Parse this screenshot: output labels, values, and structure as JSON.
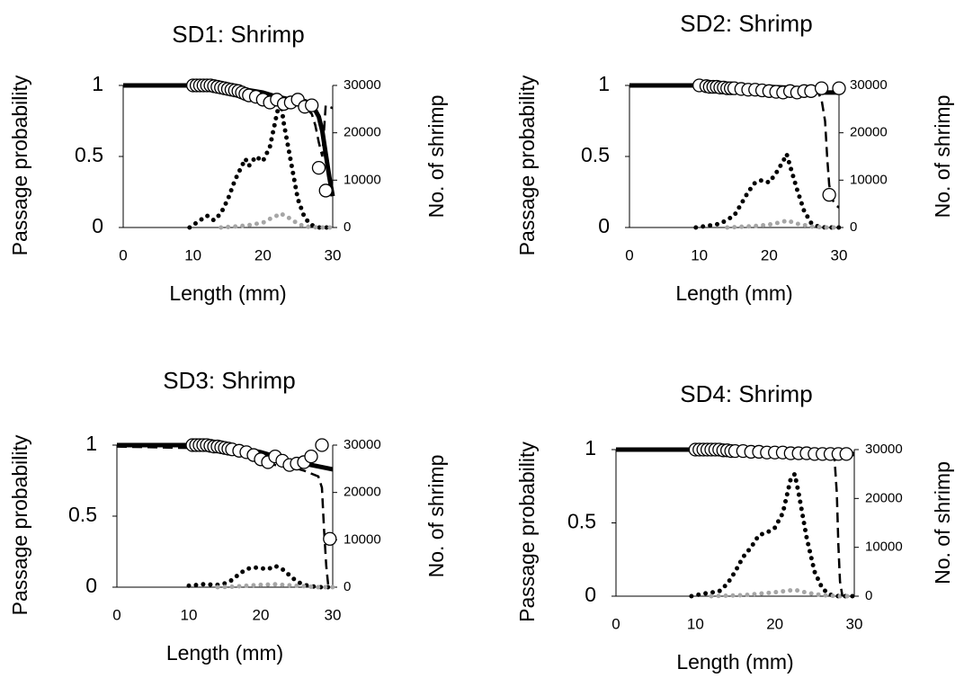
{
  "chart_data": [
    {
      "type": "line",
      "title": "SD1: Shrimp",
      "x_label": "Length (mm)",
      "y_label": "Passage probability",
      "y2_label": "No. of shrimp",
      "xlim": [
        0,
        30
      ],
      "xticks": [
        0,
        10,
        20,
        30
      ],
      "ylim": [
        0,
        1
      ],
      "yticks": [
        0,
        0.5,
        1
      ],
      "y2lim": [
        0,
        30000
      ],
      "y2ticks": [
        0,
        10000,
        20000,
        30000
      ],
      "series": [
        {
          "color": "#000000",
          "style": "solid",
          "x": [
            0,
            5,
            10,
            15,
            20,
            22,
            24,
            26,
            27,
            28,
            28.5,
            29,
            29.5,
            30
          ],
          "values": [
            1,
            1,
            1,
            0.99,
            0.95,
            0.92,
            0.9,
            0.89,
            0.87,
            0.78,
            0.68,
            0.52,
            0.36,
            0.22
          ]
        },
        {
          "color": "#000000",
          "style": "dashed",
          "x": [
            20,
            22,
            24,
            25,
            26,
            27,
            27.5,
            28,
            28.5,
            29,
            29.5,
            30
          ],
          "values": [
            0.9,
            0.88,
            0.87,
            0.86,
            0.85,
            0.8,
            0.72,
            0.6,
            0.5,
            0.86,
            0.85,
            0.84
          ]
        },
        {
          "color": "#000000",
          "style": "markers",
          "x": [
            10,
            10.5,
            11,
            11.5,
            12,
            12.5,
            13,
            13.5,
            14,
            14.5,
            15,
            15.5,
            16,
            16.5,
            17,
            17.5,
            18,
            19,
            20,
            21,
            22,
            23,
            24,
            25,
            26,
            27,
            28,
            29
          ],
          "values": [
            1,
            1,
            1,
            1,
            1,
            1,
            0.995,
            0.99,
            0.985,
            0.98,
            0.975,
            0.97,
            0.965,
            0.96,
            0.95,
            0.94,
            0.93,
            0.92,
            0.9,
            0.88,
            0.9,
            0.87,
            0.88,
            0.9,
            0.85,
            0.86,
            0.42,
            0.26
          ]
        },
        {
          "color": "#000000",
          "style": "dotted",
          "axis": "y2",
          "x": [
            9.5,
            10,
            11,
            12,
            13,
            14,
            15,
            16,
            17,
            17.5,
            18,
            19,
            20,
            21,
            22,
            22.5,
            23,
            24,
            25,
            26,
            27,
            28,
            29,
            30
          ],
          "values": [
            0,
            500,
            1500,
            2500,
            1500,
            3000,
            6000,
            10000,
            13000,
            14500,
            13000,
            15000,
            14000,
            17000,
            24000,
            27000,
            22000,
            14000,
            6000,
            2000,
            500,
            0,
            0,
            0
          ]
        },
        {
          "color": "#a6a6a6",
          "style": "dotted",
          "axis": "y2",
          "x": [
            14,
            16,
            18,
            20,
            21,
            22,
            22.5,
            23,
            24,
            25,
            26,
            28,
            30
          ],
          "values": [
            0,
            200,
            500,
            1000,
            1800,
            2500,
            3000,
            2600,
            1800,
            800,
            200,
            0,
            0
          ]
        }
      ]
    },
    {
      "type": "line",
      "title": "SD2: Shrimp",
      "x_label": "Length (mm)",
      "y_label": "Passage probability",
      "y2_label": "No. of shrimp",
      "xlim": [
        0,
        30
      ],
      "xticks": [
        0,
        10,
        20,
        30
      ],
      "ylim": [
        0,
        1
      ],
      "yticks": [
        0,
        0.5,
        1
      ],
      "y2lim": [
        0,
        30000
      ],
      "y2ticks": [
        0,
        10000,
        20000,
        30000
      ],
      "series": [
        {
          "color": "#000000",
          "style": "solid",
          "x": [
            0,
            10,
            20,
            25,
            27,
            28,
            29,
            30
          ],
          "values": [
            1,
            1,
            0.99,
            0.98,
            0.96,
            0.95,
            0.95,
            0.95
          ]
        },
        {
          "color": "#000000",
          "style": "dashed",
          "x": [
            0,
            10,
            20,
            25,
            27,
            27.5,
            28,
            28.3,
            28.6,
            29,
            29.5,
            30
          ],
          "values": [
            1,
            1,
            0.99,
            0.97,
            0.95,
            0.9,
            0.75,
            0.5,
            0.3,
            0.2,
            0.16,
            0.14
          ]
        },
        {
          "color": "#000000",
          "style": "markers",
          "x": [
            10,
            11,
            11.5,
            12,
            12.5,
            13,
            13.5,
            14,
            14.5,
            15,
            16,
            17,
            18,
            19,
            20,
            21,
            22,
            23,
            24,
            25,
            26,
            27.5,
            28.6,
            30
          ],
          "values": [
            1,
            0.995,
            0.99,
            0.99,
            0.99,
            0.985,
            0.985,
            0.98,
            0.98,
            0.98,
            0.975,
            0.97,
            0.97,
            0.965,
            0.96,
            0.955,
            0.95,
            0.96,
            0.95,
            0.96,
            0.96,
            0.98,
            0.23,
            0.98
          ]
        },
        {
          "color": "#000000",
          "style": "dotted",
          "axis": "y2",
          "x": [
            9.5,
            11,
            13,
            15,
            16,
            17,
            18,
            19,
            20,
            21,
            22,
            22.5,
            23,
            24,
            25,
            26,
            27,
            28,
            30
          ],
          "values": [
            0,
            300,
            800,
            2500,
            5000,
            7500,
            9500,
            10000,
            9500,
            11500,
            14000,
            15500,
            13000,
            8000,
            3500,
            1000,
            200,
            0,
            0
          ]
        },
        {
          "color": "#a6a6a6",
          "style": "dotted",
          "axis": "y2",
          "x": [
            14,
            18,
            20,
            22,
            22.5,
            24,
            26,
            28,
            30
          ],
          "values": [
            0,
            300,
            600,
            1200,
            1500,
            800,
            200,
            0,
            0
          ]
        }
      ]
    },
    {
      "type": "line",
      "title": "SD3: Shrimp",
      "x_label": "Length (mm)",
      "y_label": "Passage probability",
      "y2_label": "No. of shrimp",
      "xlim": [
        0,
        30
      ],
      "xticks": [
        0,
        10,
        20,
        30
      ],
      "ylim": [
        0,
        1
      ],
      "yticks": [
        0,
        0.5,
        1
      ],
      "y2lim": [
        0,
        30000
      ],
      "y2ticks": [
        0,
        10000,
        20000,
        30000
      ],
      "series": [
        {
          "color": "#000000",
          "style": "solid",
          "x": [
            0,
            10,
            15,
            18,
            20,
            22,
            24,
            26,
            28,
            30
          ],
          "values": [
            1,
            1,
            0.99,
            0.97,
            0.95,
            0.92,
            0.89,
            0.87,
            0.85,
            0.83
          ]
        },
        {
          "color": "#000000",
          "style": "dashed",
          "x": [
            0,
            10,
            15,
            18,
            20,
            22,
            24,
            26,
            27,
            28,
            28.5,
            28.8,
            29.1,
            29.4
          ],
          "values": [
            0.99,
            0.98,
            0.97,
            0.95,
            0.88,
            0.86,
            0.85,
            0.82,
            0.8,
            0.78,
            0.7,
            0.4,
            0.15,
            0
          ]
        },
        {
          "color": "#000000",
          "style": "markers",
          "x": [
            10.5,
            11,
            11.5,
            12,
            12.5,
            13,
            13.5,
            14,
            14.5,
            15,
            15.5,
            16,
            17,
            18,
            19,
            20,
            21,
            22,
            23,
            24,
            25,
            26,
            27,
            28.5,
            29.6
          ],
          "values": [
            1,
            1,
            1,
            1,
            1,
            0.995,
            0.99,
            0.99,
            0.985,
            0.98,
            0.975,
            0.97,
            0.96,
            0.95,
            0.93,
            0.9,
            0.88,
            0.92,
            0.89,
            0.86,
            0.87,
            0.88,
            0.92,
            1,
            0.34
          ]
        },
        {
          "color": "#000000",
          "style": "dotted",
          "axis": "y2",
          "x": [
            10,
            12,
            14,
            15,
            16,
            17,
            18,
            19,
            20,
            21,
            22,
            23,
            24,
            25,
            26,
            27,
            28,
            29,
            30
          ],
          "values": [
            300,
            600,
            500,
            800,
            1500,
            2800,
            3800,
            4200,
            4000,
            3800,
            4500,
            3800,
            2500,
            1200,
            500,
            200,
            0,
            0,
            0
          ]
        },
        {
          "color": "#a6a6a6",
          "style": "dotted",
          "axis": "y2",
          "x": [
            14,
            16,
            18,
            20,
            22,
            24,
            26,
            28,
            30
          ],
          "values": [
            0,
            100,
            300,
            500,
            600,
            400,
            200,
            0,
            0
          ]
        }
      ]
    },
    {
      "type": "line",
      "title": "SD4: Shrimp",
      "x_label": "Length (mm)",
      "y_label": "Passage probability",
      "y2_label": "No. of shrimp",
      "xlim": [
        0,
        30
      ],
      "xticks": [
        0,
        10,
        20,
        30
      ],
      "ylim": [
        0,
        1
      ],
      "yticks": [
        0,
        0.5,
        1
      ],
      "y2lim": [
        0,
        30000
      ],
      "y2ticks": [
        0,
        10000,
        20000,
        30000
      ],
      "series": [
        {
          "color": "#000000",
          "style": "solid",
          "x": [
            0,
            10,
            20,
            25,
            28,
            30
          ],
          "values": [
            1,
            1,
            0.99,
            0.98,
            0.97,
            0.97
          ]
        },
        {
          "color": "#000000",
          "style": "dashed",
          "x": [
            0,
            10,
            20,
            25,
            27,
            27.5,
            27.8,
            28,
            28.2,
            28.5
          ],
          "values": [
            1,
            1,
            0.99,
            0.98,
            0.97,
            0.95,
            0.7,
            0.35,
            0.1,
            0
          ]
        },
        {
          "color": "#000000",
          "style": "markers",
          "x": [
            10,
            10.5,
            11,
            11.5,
            12,
            12.5,
            13,
            13.5,
            14,
            14.5,
            15,
            16,
            17,
            18,
            19,
            20,
            21,
            22,
            23,
            24,
            25,
            26,
            27,
            28,
            29
          ],
          "values": [
            1,
            1,
            1,
            1,
            1,
            1,
            1,
            0.995,
            0.995,
            0.99,
            0.99,
            0.99,
            0.985,
            0.985,
            0.98,
            0.98,
            0.98,
            0.975,
            0.975,
            0.975,
            0.97,
            0.97,
            0.97,
            0.97,
            0.97
          ]
        },
        {
          "color": "#000000",
          "style": "dotted",
          "axis": "y2",
          "x": [
            9.5,
            11,
            13,
            14,
            15,
            16,
            17,
            18,
            19,
            20,
            21,
            22,
            22.5,
            23,
            24,
            25,
            26,
            27,
            28,
            29,
            30
          ],
          "values": [
            0,
            500,
            1000,
            2500,
            5000,
            8000,
            10000,
            12500,
            13000,
            14000,
            17000,
            24000,
            25000,
            21000,
            12000,
            5000,
            1500,
            300,
            0,
            0,
            0
          ]
        },
        {
          "color": "#a6a6a6",
          "style": "dotted",
          "axis": "y2",
          "x": [
            12,
            16,
            18,
            20,
            22,
            22.5,
            24,
            26,
            28,
            30
          ],
          "values": [
            0,
            200,
            500,
            800,
            1200,
            1300,
            700,
            200,
            0,
            0
          ]
        }
      ]
    }
  ]
}
